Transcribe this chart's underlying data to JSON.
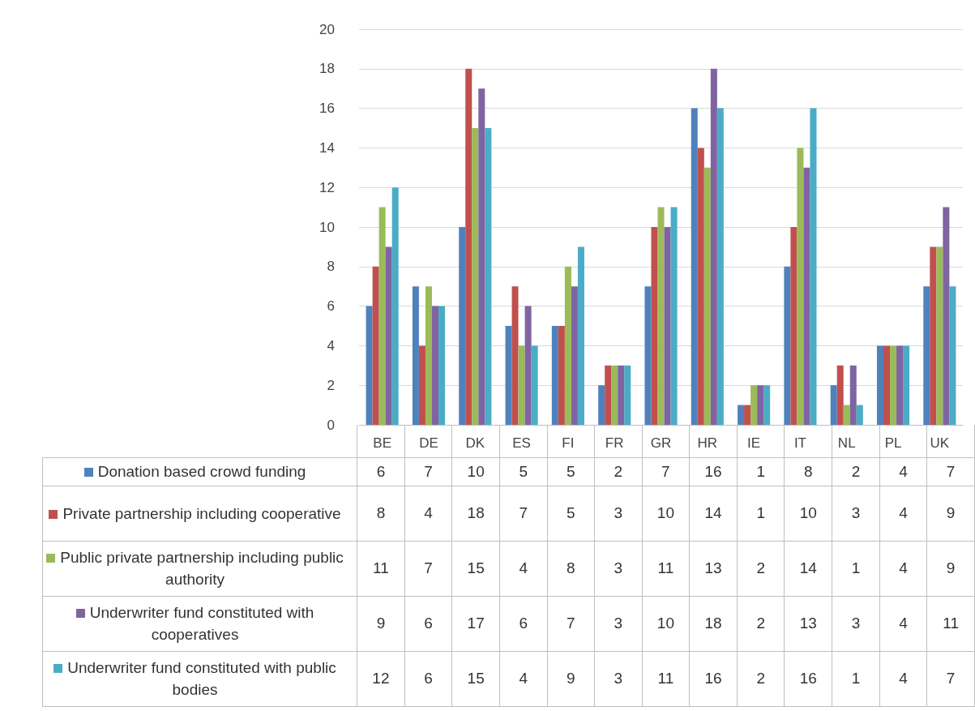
{
  "chart_data": {
    "type": "bar",
    "categories": [
      "BE",
      "DE",
      "DK",
      "ES",
      "FI",
      "FR",
      "GR",
      "HR",
      "IE",
      "IT",
      "NL",
      "PL",
      "UK"
    ],
    "series": [
      {
        "name": "Donation based crowd funding",
        "color": "#4f81bd",
        "values": [
          6,
          7,
          10,
          5,
          5,
          2,
          7,
          16,
          1,
          8,
          2,
          4,
          7
        ]
      },
      {
        "name": "Private partnership including cooperative",
        "color": "#c0504d",
        "values": [
          8,
          4,
          18,
          7,
          5,
          3,
          10,
          14,
          1,
          10,
          3,
          4,
          9
        ]
      },
      {
        "name": "Public private partnership including public authority",
        "color": "#9bbb59",
        "values": [
          11,
          7,
          15,
          4,
          8,
          3,
          11,
          13,
          2,
          14,
          1,
          4,
          9
        ]
      },
      {
        "name": "Underwriter fund constituted with cooperatives",
        "color": "#8064a2",
        "values": [
          9,
          6,
          17,
          6,
          7,
          3,
          10,
          18,
          2,
          13,
          3,
          4,
          11
        ]
      },
      {
        "name": "Underwriter fund constituted with public bodies",
        "color": "#4bacc6",
        "values": [
          12,
          6,
          15,
          4,
          9,
          3,
          11,
          16,
          2,
          16,
          1,
          4,
          7
        ]
      }
    ],
    "ylim": [
      0,
      20
    ],
    "yticks": [
      0,
      2,
      4,
      6,
      8,
      10,
      12,
      14,
      16,
      18,
      20
    ],
    "grid": "y",
    "legend": "bottom",
    "data_labels": true
  }
}
